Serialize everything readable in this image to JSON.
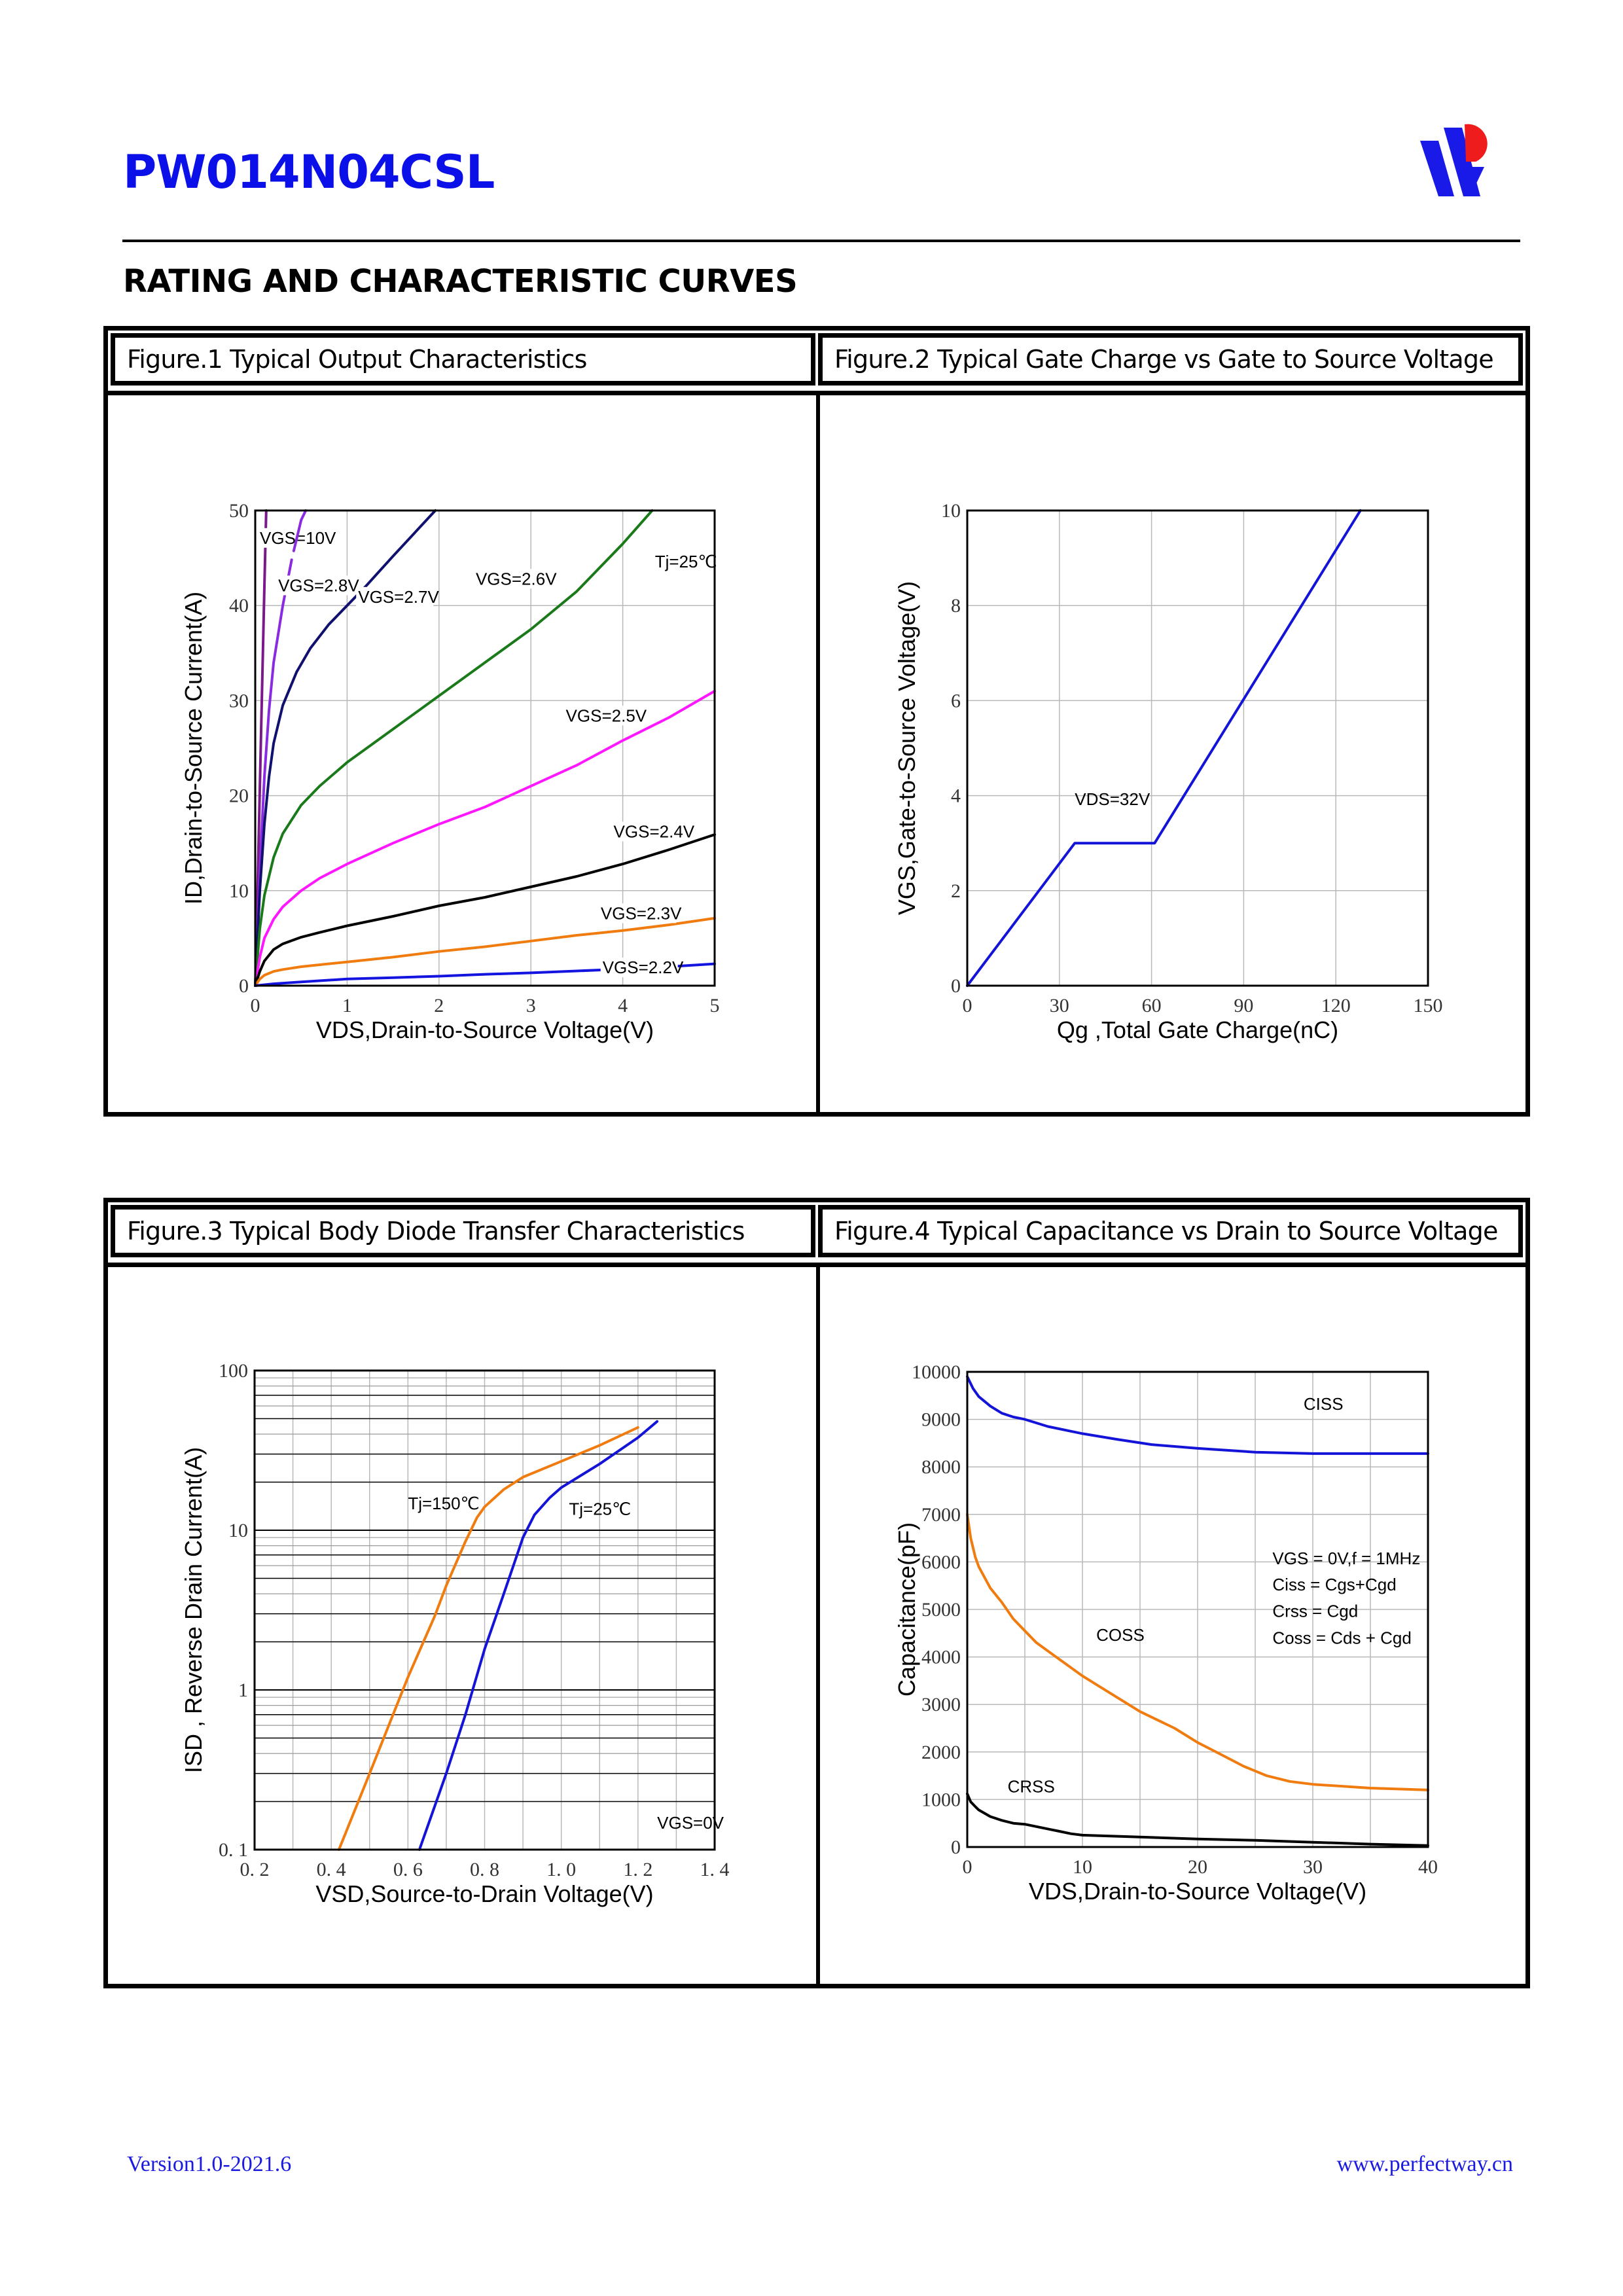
{
  "header": {
    "part_number": "PW014N04CSL",
    "section_title": "RATING AND CHARACTERISTIC CURVES",
    "logo_icon": "perfectway-logo-icon"
  },
  "captions": {
    "fig1": "Figure.1 Typical Output Characteristics",
    "fig2": "Figure.2 Typical Gate Charge vs Gate to Source Voltage",
    "fig3": "Figure.3 Typical Body Diode Transfer Characteristics",
    "fig4": "Figure.4 Typical Capacitance vs Drain to Source Voltage"
  },
  "footer": {
    "version": "Version1.0-2021.6",
    "website": "www.perfectway.cn"
  },
  "chart_data": [
    {
      "id": "fig1",
      "type": "line",
      "title": "Typical Output Characteristics",
      "xlabel": "VDS,Drain-to-Source Voltage(V)",
      "ylabel": "ID,Drain-to-Source Current(A)",
      "xlim": [
        0,
        5
      ],
      "ylim": [
        0,
        50
      ],
      "xticks": [
        0,
        1,
        2,
        3,
        4,
        5
      ],
      "yticks": [
        0,
        10,
        20,
        30,
        40,
        50
      ],
      "grid": true,
      "annotations": [
        {
          "text": "Tj=25℃",
          "x": 4.35,
          "y": 44
        }
      ],
      "series": [
        {
          "name": "VGS=10V",
          "color": "#7a1a8a",
          "label_at": [
            0.05,
            46.5
          ],
          "x": [
            0,
            0.03,
            0.06,
            0.1,
            0.12
          ],
          "y": [
            0,
            12,
            25,
            42,
            50
          ]
        },
        {
          "name": "VGS=2.8V",
          "color": "#8a2be2",
          "dashed_top": true,
          "label_at": [
            0.25,
            41.5
          ],
          "x": [
            0,
            0.05,
            0.1,
            0.15,
            0.2,
            0.3,
            0.4,
            0.5,
            0.55
          ],
          "y": [
            0,
            12,
            22,
            29,
            34,
            40,
            45,
            49,
            50
          ]
        },
        {
          "name": "VGS=2.7V",
          "color": "#10106e",
          "label_at": [
            1.12,
            40.3
          ],
          "x": [
            0,
            0.05,
            0.1,
            0.15,
            0.2,
            0.3,
            0.45,
            0.6,
            0.8,
            1.0,
            1.2,
            1.5,
            1.96
          ],
          "y": [
            0,
            10,
            17,
            22,
            25.5,
            29.5,
            33,
            35.5,
            38,
            40,
            42,
            45.2,
            50
          ]
        },
        {
          "name": "VGS=2.6V",
          "color": "#1a7a1a",
          "label_at": [
            2.4,
            42.2
          ],
          "x": [
            0,
            0.05,
            0.1,
            0.2,
            0.3,
            0.5,
            0.7,
            1.0,
            1.5,
            2.0,
            2.5,
            3.0,
            3.5,
            4.0,
            4.32
          ],
          "y": [
            0,
            6,
            9.5,
            13.5,
            16,
            19,
            21,
            23.5,
            27,
            30.5,
            34,
            37.5,
            41.5,
            46.5,
            50
          ]
        },
        {
          "name": "VGS=2.5V",
          "color": "#ff18ff",
          "label_at": [
            3.38,
            27.8
          ],
          "x": [
            0,
            0.05,
            0.1,
            0.2,
            0.3,
            0.5,
            0.7,
            1.0,
            1.5,
            2.0,
            2.5,
            3.0,
            3.5,
            4.0,
            4.5,
            5.0
          ],
          "y": [
            0,
            3,
            5,
            7,
            8.3,
            10,
            11.3,
            12.8,
            15,
            17,
            18.8,
            21,
            23.2,
            25.8,
            28.2,
            31
          ]
        },
        {
          "name": "VGS=2.4V",
          "color": "#000000",
          "label_at": [
            3.9,
            15.6
          ],
          "x": [
            0,
            0.05,
            0.1,
            0.2,
            0.3,
            0.5,
            0.7,
            1.0,
            1.5,
            2.0,
            2.5,
            3.0,
            3.5,
            4.0,
            4.5,
            5.0
          ],
          "y": [
            0,
            1.5,
            2.6,
            3.8,
            4.4,
            5.1,
            5.6,
            6.3,
            7.3,
            8.4,
            9.3,
            10.4,
            11.5,
            12.8,
            14.3,
            15.9
          ]
        },
        {
          "name": "VGS=2.3V",
          "color": "#f07c10",
          "label_at": [
            3.76,
            7.0
          ],
          "x": [
            0,
            0.05,
            0.1,
            0.2,
            0.3,
            0.5,
            1.0,
            1.5,
            2.0,
            2.5,
            3.0,
            3.5,
            4.0,
            4.5,
            5.0
          ],
          "y": [
            0,
            0.7,
            1.1,
            1.5,
            1.7,
            2.0,
            2.5,
            3.0,
            3.6,
            4.1,
            4.7,
            5.3,
            5.8,
            6.4,
            7.1
          ]
        },
        {
          "name": "VGS=2.2V",
          "color": "#1414e0",
          "label_at": [
            3.78,
            1.3
          ],
          "x": [
            0,
            0.2,
            0.5,
            1.0,
            1.5,
            2.0,
            2.5,
            3.0,
            3.5,
            4.0,
            4.5,
            5.0
          ],
          "y": [
            0,
            0.2,
            0.4,
            0.7,
            0.85,
            1.0,
            1.2,
            1.35,
            1.55,
            1.75,
            2.0,
            2.3
          ]
        }
      ]
    },
    {
      "id": "fig2",
      "type": "line",
      "title": "Typical Gate Charge vs Gate to Source Voltage",
      "xlabel": "Qg ,Total Gate Charge(nC)",
      "ylabel": "VGS,Gate-to-Source Voltage(V)",
      "xlim": [
        0,
        150
      ],
      "ylim": [
        0,
        10
      ],
      "xticks": [
        0,
        30,
        60,
        90,
        120,
        150
      ],
      "yticks": [
        0,
        2,
        4,
        6,
        8,
        10
      ],
      "grid": true,
      "annotations": [
        {
          "text": "VDS=32V",
          "x": 35,
          "y": 3.8
        }
      ],
      "series": [
        {
          "name": "VGS",
          "color": "#1414d8",
          "x": [
            0,
            35,
            61,
            128
          ],
          "y": [
            0,
            3.0,
            3.0,
            10
          ]
        }
      ]
    },
    {
      "id": "fig3",
      "type": "line",
      "title": "Typical Body Diode Transfer Characteristics",
      "xlabel": "VSD,Source-to-Drain Voltage(V)",
      "ylabel": "ISD , Reverse Drain Current(A)",
      "xlim": [
        0.2,
        1.4
      ],
      "ylim": [
        0.1,
        100
      ],
      "yscale": "log",
      "xticks": [
        0.2,
        0.4,
        0.6,
        0.8,
        1.0,
        1.2,
        1.4
      ],
      "xtick_labels": [
        "0. 2",
        "0. 4",
        "0. 6",
        "0. 8",
        "1. 0",
        "1. 2",
        "1. 4"
      ],
      "yticks": [
        0.1,
        1,
        10,
        100
      ],
      "ytick_labels": [
        "0. 1",
        "1",
        "10",
        "100"
      ],
      "grid": true,
      "annotations": [
        {
          "text": "Tj=150℃",
          "x": 0.6,
          "y": 13.5
        },
        {
          "text": "Tj=25℃",
          "x": 1.02,
          "y": 12.5
        },
        {
          "text": "VGS=0V",
          "x": 1.25,
          "y": 0.135
        }
      ],
      "series": [
        {
          "name": "Tj=150℃",
          "color": "#f07c10",
          "x": [
            0.42,
            0.5,
            0.6,
            0.67,
            0.7,
            0.75,
            0.78,
            0.8,
            0.85,
            0.9,
            1.0,
            1.1,
            1.2
          ],
          "y": [
            0.1,
            0.3,
            1.2,
            2.9,
            4.5,
            8.5,
            12,
            14,
            18,
            21.5,
            27,
            34,
            44
          ]
        },
        {
          "name": "Tj=25℃",
          "color": "#1414d8",
          "x": [
            0.63,
            0.7,
            0.75,
            0.8,
            0.85,
            0.88,
            0.9,
            0.93,
            0.97,
            1.0,
            1.1,
            1.2,
            1.25
          ],
          "y": [
            0.1,
            0.3,
            0.7,
            1.8,
            4.0,
            6.5,
            9.0,
            12.5,
            16,
            18.5,
            26,
            38,
            48
          ]
        }
      ]
    },
    {
      "id": "fig4",
      "type": "line",
      "title": "Typical Capacitance vs Drain to Source Voltage",
      "xlabel": "VDS,Drain-to-Source Voltage(V)",
      "ylabel": "Capacitance(pF)",
      "xlim": [
        0,
        40
      ],
      "ylim": [
        0,
        10000
      ],
      "xticks": [
        0,
        10,
        20,
        30,
        40
      ],
      "yticks": [
        0,
        1000,
        2000,
        3000,
        4000,
        5000,
        6000,
        7000,
        8000,
        9000,
        10000
      ],
      "grid": true,
      "annotations": [
        {
          "text": "CISS",
          "x": 29.2,
          "y": 9200
        },
        {
          "text": "COSS",
          "x": 11.2,
          "y": 4340
        },
        {
          "text": "CRSS",
          "x": 3.5,
          "y": 1150
        },
        {
          "text": "VGS  = 0V,f = 1MHz",
          "x": 26.5,
          "y": 5950
        },
        {
          "text": "Ciss = Cgs+Cgd",
          "x": 26.5,
          "y": 5400
        },
        {
          "text": "Crss = Cgd",
          "x": 26.5,
          "y": 4840
        },
        {
          "text": "Coss = Cds + Cgd",
          "x": 26.5,
          "y": 4280
        }
      ],
      "series": [
        {
          "name": "CISS",
          "color": "#1414d8",
          "x": [
            0,
            0.5,
            1,
            2,
            3,
            4,
            5,
            7,
            10,
            13,
            16,
            20,
            25,
            30,
            35,
            40
          ],
          "y": [
            9900,
            9650,
            9480,
            9280,
            9130,
            9050,
            9000,
            8850,
            8700,
            8580,
            8470,
            8390,
            8310,
            8280,
            8280,
            8280
          ]
        },
        {
          "name": "COSS",
          "color": "#f07c10",
          "x": [
            0,
            0.3,
            0.7,
            1,
            2,
            3,
            4,
            5,
            6,
            8,
            10,
            12,
            15,
            18,
            20,
            22,
            24,
            26,
            28,
            30,
            35,
            40
          ],
          "y": [
            7000,
            6500,
            6100,
            5900,
            5450,
            5150,
            4800,
            4550,
            4300,
            3950,
            3600,
            3300,
            2850,
            2500,
            2200,
            1950,
            1700,
            1500,
            1380,
            1320,
            1240,
            1200
          ]
        },
        {
          "name": "CRSS",
          "color": "#000000",
          "x": [
            0,
            0.3,
            0.7,
            1,
            2,
            3,
            4,
            5,
            6,
            7,
            8,
            9,
            10,
            15,
            20,
            25,
            30,
            35,
            40
          ],
          "y": [
            1120,
            950,
            850,
            780,
            640,
            560,
            500,
            480,
            430,
            380,
            330,
            280,
            250,
            210,
            170,
            140,
            100,
            60,
            30
          ]
        }
      ]
    }
  ]
}
